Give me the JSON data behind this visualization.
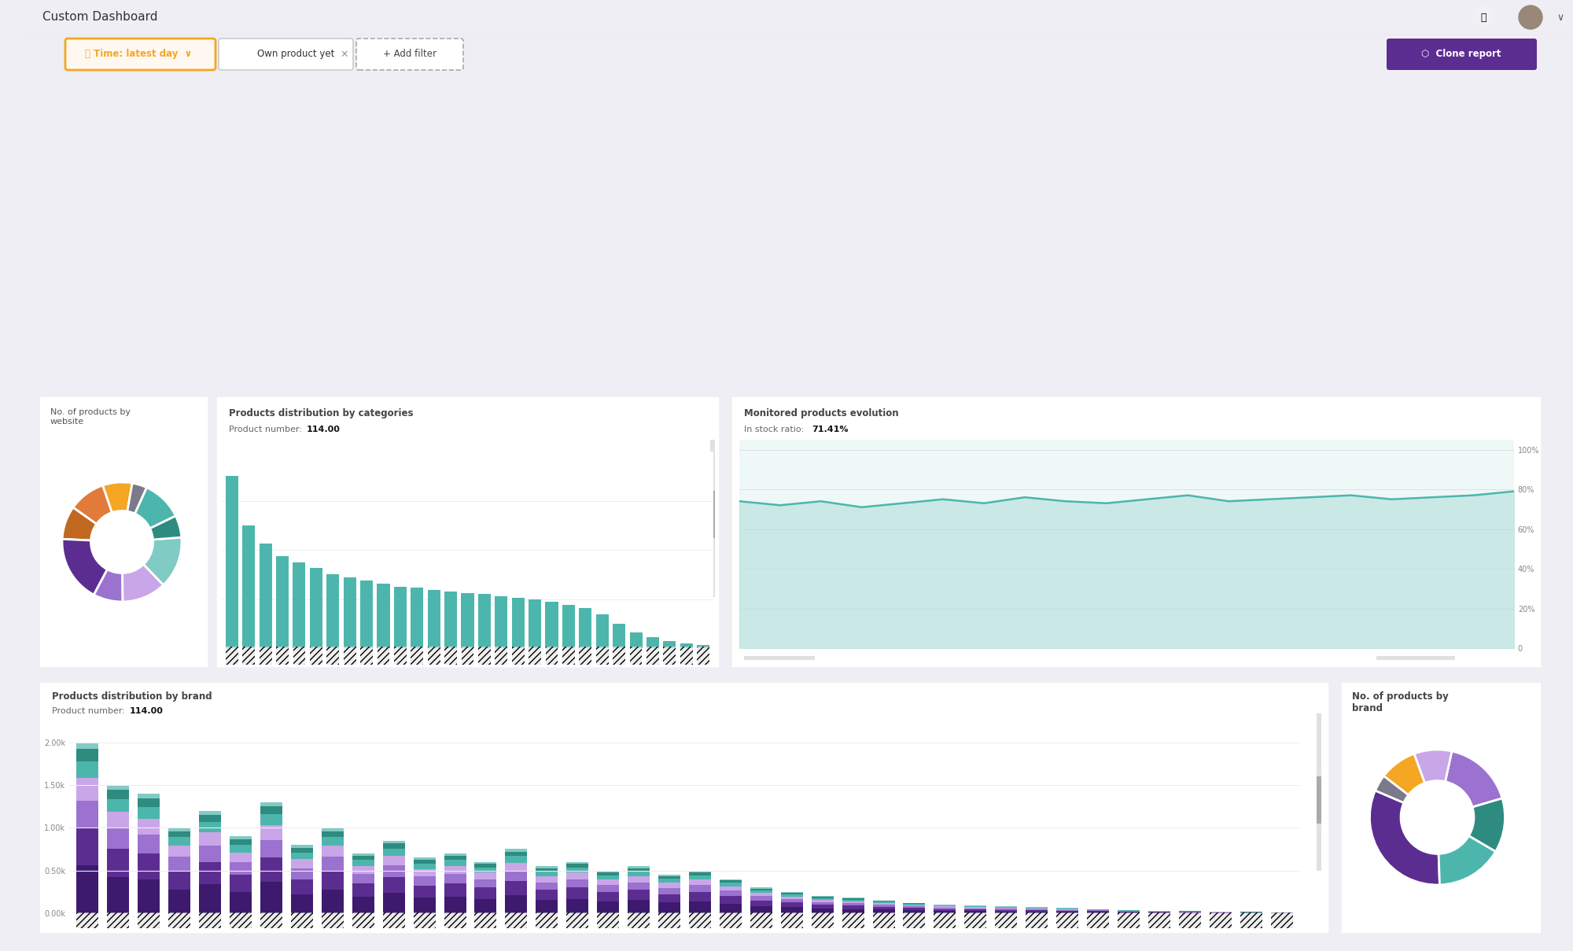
{
  "bg_color": "#eeeef4",
  "sidebar_color": "#3d1a6e",
  "white": "#ffffff",
  "title_text": "Custom Dashboard",
  "filter1_text": "⏳ Time: latest day  ∨",
  "filter2_text": "Own product yet",
  "filter3_text": "+ Add filter",
  "clone_btn_text": "▣  Clone report",
  "donut1_colors": [
    "#f5a623",
    "#e07b39",
    "#c06820",
    "#5c2d91",
    "#9b72cf",
    "#c9a6e8",
    "#80cbc4",
    "#2e8b80",
    "#4db6ac",
    "#7a7a8a"
  ],
  "donut1_sizes": [
    8,
    10,
    9,
    18,
    8,
    12,
    14,
    6,
    11,
    4
  ],
  "donut2_colors": [
    "#f5a623",
    "#7a7a8a",
    "#5c2d91",
    "#4db6ac",
    "#2e8b80",
    "#9b72cf",
    "#c9a6e8"
  ],
  "donut2_sizes": [
    9,
    4,
    32,
    16,
    13,
    17,
    9
  ],
  "cat_bar_values": [
    28,
    20,
    17,
    15,
    14,
    13,
    12,
    11.5,
    11,
    10.5,
    10,
    9.8,
    9.5,
    9.2,
    9,
    8.8,
    8.5,
    8.2,
    8,
    7.5,
    7,
    6.5,
    5.5,
    4,
    2.5,
    1.8,
    1.2,
    0.8,
    0.5
  ],
  "cat_bar_color": "#4db6ac",
  "brand_seg_colors": [
    "#3d1a6e",
    "#5c2d91",
    "#9b72cf",
    "#c9a6e8",
    "#4db6ac",
    "#2e8b80",
    "#80cbc4"
  ],
  "brand_n_groups": 40,
  "brand_max_heights": [
    2.0,
    1.5,
    1.4,
    1.0,
    1.2,
    0.9,
    1.3,
    0.8,
    1.0,
    0.7,
    0.85,
    0.65,
    0.7,
    0.6,
    0.75,
    0.55,
    0.6,
    0.5,
    0.55,
    0.45,
    0.5,
    0.4,
    0.3,
    0.25,
    0.2,
    0.18,
    0.15,
    0.12,
    0.1,
    0.09,
    0.08,
    0.07,
    0.06,
    0.05,
    0.04,
    0.03,
    0.025,
    0.02,
    0.015,
    0.01
  ],
  "line_chart_values": [
    74,
    72,
    74,
    71,
    73,
    75,
    73,
    76,
    74,
    73,
    75,
    77,
    74,
    75,
    76,
    77,
    75,
    76,
    77,
    79
  ],
  "in_stock_ratio": "71.41%",
  "panel1_title": "No. of products by\nwebsite",
  "panel2_title": "Products distribution by categories",
  "panel3_title": "Monitored products evolution",
  "panel4_title": "Products distribution by brand",
  "panel5_title": "No. of products by\nbrand",
  "product_number": "114.00"
}
